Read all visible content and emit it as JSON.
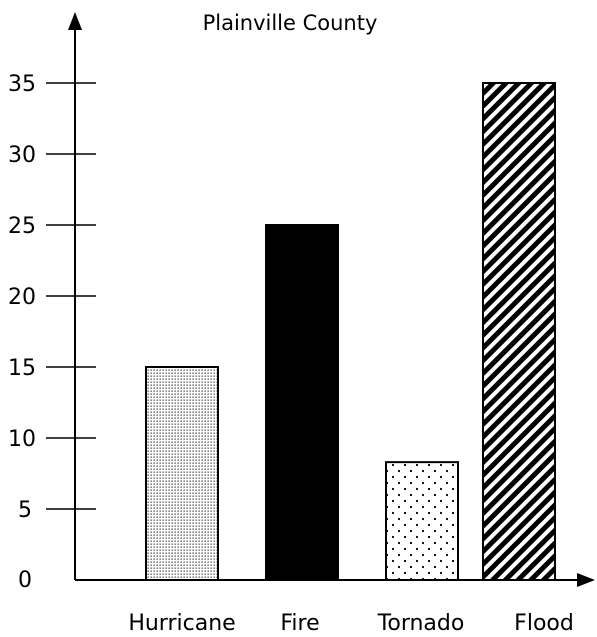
{
  "chart_data": {
    "type": "bar",
    "title": "Plainville County",
    "xlabel": "",
    "ylabel": "",
    "categories": [
      "Hurricane",
      "Fire",
      "Tornado",
      "Flood"
    ],
    "values": [
      15,
      25,
      8.3,
      35
    ],
    "patterns": [
      "fine-dots",
      "solid-black",
      "sparse-dots",
      "diagonal-stripes"
    ],
    "ylim": [
      0,
      35
    ],
    "yticks": [
      0,
      5,
      10,
      15,
      20,
      25,
      30,
      35
    ],
    "grid": false,
    "legend": "none"
  }
}
